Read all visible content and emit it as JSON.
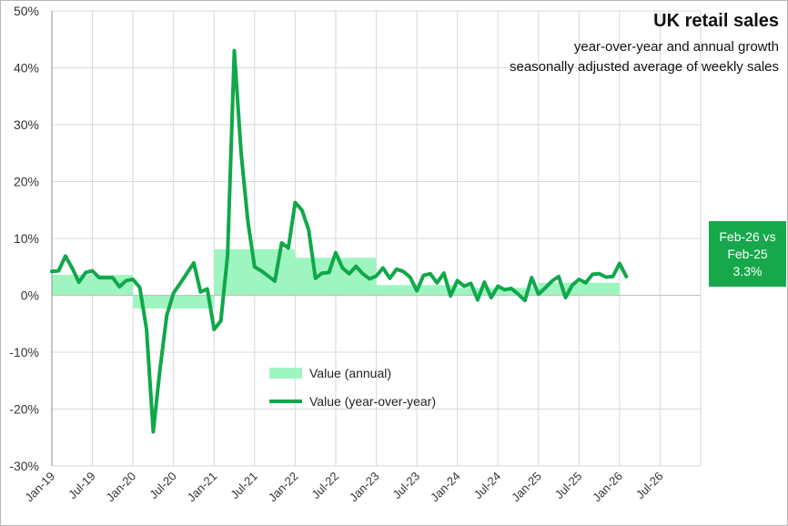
{
  "chart_data": {
    "type": "line",
    "title": "UK retail sales",
    "subtitle_1": "year-over-year and annual growth",
    "subtitle_2": "seasonally adjusted average of weekly sales",
    "y_ticks": [
      "50%",
      "40%",
      "30%",
      "20%",
      "10%",
      "0%",
      "-10%",
      "-20%",
      "-30%"
    ],
    "ylim": [
      -30,
      50
    ],
    "x_ticks": [
      "Jan-19",
      "Jul-19",
      "Jan-20",
      "Jul-20",
      "Jan-21",
      "Jul-21",
      "Jan-22",
      "Jul-22",
      "Jan-23",
      "Jul-23",
      "Jan-24",
      "Jul-24",
      "Jan-25",
      "Jul-25",
      "Jan-26",
      "Jul-26"
    ],
    "x_start": "Jan-19",
    "x_months": 96,
    "legend": {
      "annual_label": "Value (annual)",
      "yoy_label": "Value (year-over-year)"
    },
    "annual": [
      {
        "year": "2019",
        "value": 3.6
      },
      {
        "year": "2020",
        "value": -2.3
      },
      {
        "year": "2021",
        "value": 8.1
      },
      {
        "year": "2022",
        "value": 6.6
      },
      {
        "year": "2023",
        "value": 1.8
      },
      {
        "year": "2024",
        "value": 1.3
      },
      {
        "year": "2025",
        "value": 2.2
      }
    ],
    "yoy": [
      4.2,
      4.3,
      6.9,
      4.8,
      2.3,
      4.0,
      4.3,
      3.1,
      3.1,
      3.1,
      1.5,
      2.6,
      2.8,
      1.4,
      -5.9,
      -24.0,
      -13.0,
      -3.5,
      0.4,
      2.1,
      3.9,
      5.7,
      0.6,
      1.1,
      -6.0,
      -4.5,
      7.0,
      43.0,
      25.0,
      13.0,
      5.0,
      4.3,
      3.4,
      2.5,
      9.2,
      8.3,
      16.3,
      15.0,
      11.5,
      3.0,
      3.9,
      4.0,
      7.5,
      4.8,
      3.8,
      5.1,
      3.8,
      2.9,
      3.4,
      4.8,
      3.0,
      4.6,
      4.2,
      3.2,
      0.8,
      3.5,
      3.8,
      2.2,
      3.9,
      -0.1,
      2.6,
      1.6,
      2.1,
      -0.8,
      2.3,
      -0.4,
      1.6,
      1.0,
      1.2,
      0.2,
      -0.9,
      3.1,
      0.2,
      1.3,
      2.5,
      3.3,
      -0.4,
      1.8,
      2.8,
      2.2,
      3.7,
      3.8,
      3.2,
      3.3,
      5.6,
      3.3
    ],
    "callout": {
      "line1": "Feb-26 vs",
      "line2": "Feb-25",
      "line3": "3.3%"
    },
    "colors": {
      "line": "#10a84a",
      "bar": "#9ff5c0",
      "callout": "#17a84c",
      "grid": "#d9d9d9"
    }
  }
}
